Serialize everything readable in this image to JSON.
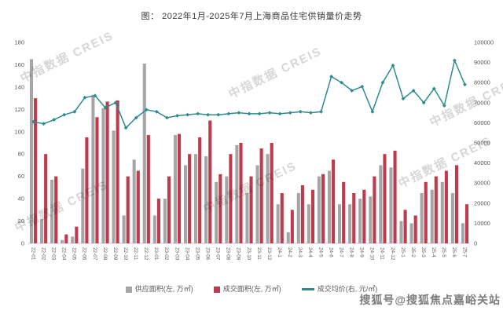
{
  "title": "图： 2022年1月-2025年7月上海商品住宅供销量价走势",
  "colors": {
    "supply": "#a6a6a6",
    "transaction": "#bc3b4e",
    "price": "#2e8b8c",
    "axis_text": "#595959",
    "sohu_watermark": "#7d7d7d"
  },
  "legend": [
    {
      "label": "供应面积(左, 万㎡)"
    },
    {
      "label": "成交面积(左, 万㎡)"
    },
    {
      "label": "成交均价(右, 元/㎡)"
    }
  ],
  "watermarks": {
    "diagonal": "中指数据 CREIS",
    "sohu": "搜狐号@搜狐焦点嘉峪关站"
  },
  "chart_data": {
    "type": "bar+line",
    "title": "图： 2022年1月-2025年7月上海商品住宅供销量价走势",
    "categories": [
      "22-01",
      "22-02",
      "22-03",
      "22-04",
      "22-05",
      "22-06",
      "22-07",
      "22-08",
      "22-09",
      "22-10",
      "22-11",
      "22-12",
      "23-01",
      "23-02",
      "23-03",
      "23-04",
      "23-05",
      "23-06",
      "23-07",
      "23-08",
      "23-09",
      "23-10",
      "23-11",
      "23-12",
      "24-1",
      "24-2",
      "24-3",
      "24-4",
      "24-5",
      "24-6",
      "24-7",
      "24-8",
      "24-9",
      "24-10",
      "24-11",
      "24-12",
      "25-1",
      "25-2",
      "25-3",
      "25-4",
      "25-5",
      "25-6",
      "25-7"
    ],
    "series": [
      {
        "name": "供应面积(左, 万㎡)",
        "type": "bar",
        "axis": "left",
        "values": [
          165,
          22,
          57,
          3,
          6,
          67,
          133,
          121,
          101,
          25,
          75,
          161,
          25,
          40,
          97,
          70,
          80,
          78,
          55,
          60,
          88,
          45,
          70,
          80,
          35,
          10,
          45,
          35,
          60,
          65,
          35,
          35,
          40,
          42,
          70,
          68,
          20,
          18,
          45,
          48,
          55,
          45,
          18
        ]
      },
      {
        "name": "成交面积(左, 万㎡)",
        "type": "bar",
        "axis": "left",
        "values": [
          130,
          80,
          60,
          8,
          15,
          95,
          113,
          127,
          128,
          60,
          65,
          97,
          40,
          60,
          98,
          80,
          95,
          110,
          62,
          80,
          90,
          60,
          85,
          90,
          45,
          30,
          52,
          48,
          62,
          75,
          55,
          45,
          48,
          60,
          80,
          83,
          30,
          25,
          55,
          60,
          65,
          70,
          35
        ]
      },
      {
        "name": "成交均价(右, 元/㎡)",
        "type": "line",
        "axis": "right",
        "values": [
          60500,
          59500,
          61500,
          64000,
          65500,
          72500,
          73500,
          67500,
          70000,
          57500,
          62500,
          66500,
          65500,
          62500,
          63500,
          64000,
          64500,
          64000,
          64000,
          64500,
          65000,
          64500,
          64500,
          65000,
          64500,
          65000,
          65500,
          65000,
          65500,
          83000,
          80000,
          76000,
          78000,
          65500,
          80000,
          88500,
          72000,
          76000,
          70000,
          77000,
          68500,
          91000,
          79000
        ]
      }
    ],
    "left_axis_max": 180,
    "right_axis_max": 100000,
    "left_ticks": [
      "0",
      "20",
      "40",
      "60",
      "80",
      "100",
      "120",
      "140",
      "160",
      "180"
    ],
    "right_ticks": [
      "0",
      "10000",
      "20000",
      "30000",
      "40000",
      "50000",
      "60000",
      "70000",
      "80000",
      "90000",
      "100000"
    ],
    "grid": false,
    "legend_position": "bottom"
  }
}
